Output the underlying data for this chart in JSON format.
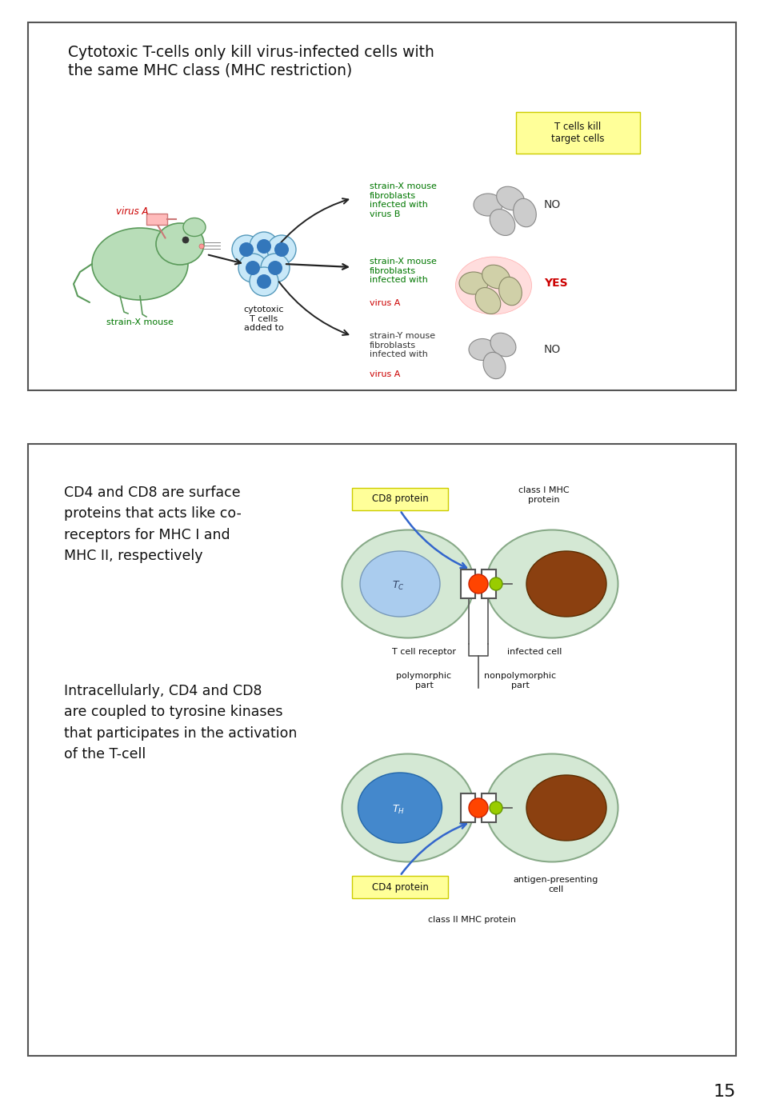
{
  "bg_color": "#ffffff",
  "page_number": "15",
  "panel1": {
    "title": "Cytotoxic T-cells only kill virus-infected cells with\nthe same MHC class (MHC restriction)",
    "title_fontsize": 13.5
  },
  "panel2": {
    "text1": "CD4 and CD8 are surface\nproteins that acts like co-\nreceptors for MHC I and\nMHC II, respectively",
    "text2": "Intracellularly, CD4 and CD8\nare coupled to tyrosine kinases\nthat participates in the activation\nof the T-cell",
    "text_fontsize": 12.5
  }
}
